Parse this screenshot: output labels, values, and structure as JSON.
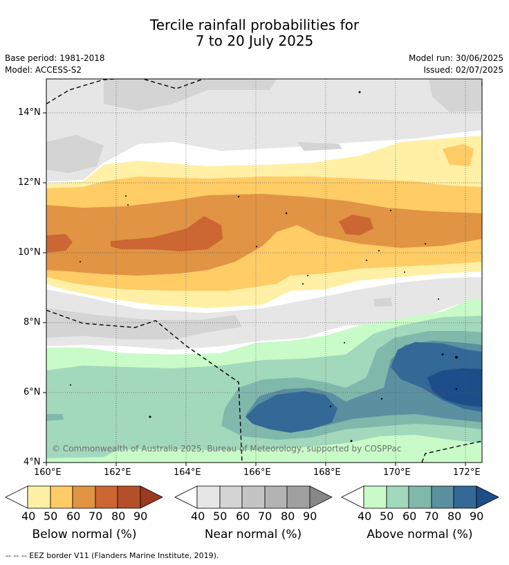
{
  "title": {
    "line1": "Tercile rainfall probabilities for",
    "line2": "7 to 20 July 2025"
  },
  "meta": {
    "base_period": "Base period: 1981-2018",
    "model": "Model: ACCESS-S2",
    "model_run": "Model run: 30/06/2025",
    "issued": "Issued: 02/07/2025"
  },
  "map": {
    "lon_ticks": [
      "160°E",
      "162°E",
      "164°E",
      "166°E",
      "168°E",
      "170°E",
      "172°E"
    ],
    "lat_ticks": [
      "14°N",
      "12°N",
      "10°N",
      "8°N",
      "6°N",
      "4°N"
    ],
    "copyright": "© Commonwealth of Australia 2025, Bureau of Meteorology, supported by COSPPac"
  },
  "colorbars": [
    {
      "name": "below",
      "label": "Below normal (%)",
      "ticks": [
        "40",
        "50",
        "60",
        "70",
        "80",
        "90"
      ],
      "colors": [
        "#fff0a5",
        "#ffcc66",
        "#e09444",
        "#cc6633",
        "#b35029",
        "#993a21"
      ]
    },
    {
      "name": "near",
      "label": "Near normal (%)",
      "ticks": [
        "40",
        "50",
        "60",
        "70",
        "80",
        "90"
      ],
      "colors": [
        "#e6e6e6",
        "#d4d4d4",
        "#c4c4c4",
        "#b3b3b3",
        "#a0a0a0",
        "#888888"
      ]
    },
    {
      "name": "above",
      "label": "Above normal (%)",
      "ticks": [
        "40",
        "50",
        "60",
        "70",
        "80",
        "90"
      ],
      "colors": [
        "#c8fbc8",
        "#a2d8bc",
        "#80b8ab",
        "#5a90a0",
        "#346896",
        "#1d4e89"
      ]
    }
  ],
  "footnote": "--  --  -- EEZ border V11 (Flanders Marine Institute, 2019)."
}
